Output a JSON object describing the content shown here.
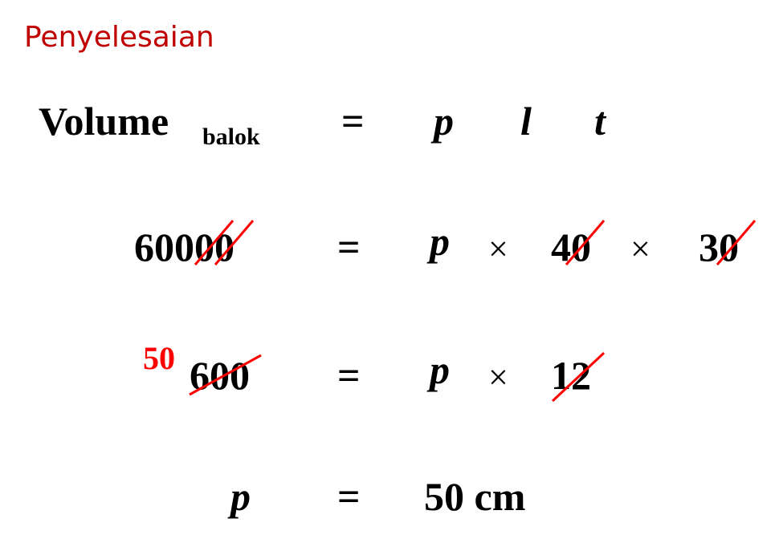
{
  "title": "Penyelesaian",
  "rows": [
    [
      "Volume",
      "balok",
      "=",
      "p",
      "l",
      "t"
    ],
    [
      "60000",
      "=",
      "p",
      "×",
      "40",
      "×",
      "30"
    ],
    [
      "50",
      "600",
      "=",
      "p",
      "×",
      "12"
    ],
    [
      "p",
      "=",
      "50 cm"
    ]
  ]
}
